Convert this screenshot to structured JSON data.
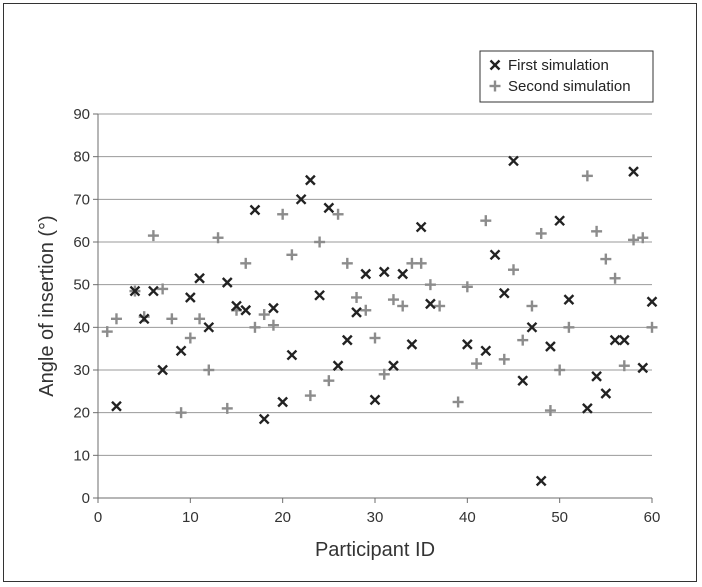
{
  "chart_data": {
    "type": "scatter",
    "title": "",
    "xlabel": "Participant ID",
    "ylabel": "Angle of insertion (°)",
    "xlim": [
      0,
      60
    ],
    "ylim": [
      0,
      90
    ],
    "x_ticks": [
      0,
      10,
      20,
      30,
      40,
      50,
      60
    ],
    "y_ticks": [
      0,
      10,
      20,
      30,
      40,
      50,
      60,
      70,
      80,
      90
    ],
    "grid": "horizontal",
    "legend_position": "top-right",
    "series": [
      {
        "name": "First simulation",
        "marker": "x",
        "color": "#222222",
        "points": [
          [
            2,
            21.5
          ],
          [
            4,
            48.5
          ],
          [
            5,
            42
          ],
          [
            6,
            48.5
          ],
          [
            7,
            30
          ],
          [
            9,
            34.5
          ],
          [
            10,
            47
          ],
          [
            11,
            51.5
          ],
          [
            12,
            40
          ],
          [
            14,
            50.5
          ],
          [
            15,
            45
          ],
          [
            16,
            44
          ],
          [
            17,
            67.5
          ],
          [
            18,
            18.5
          ],
          [
            19,
            44.5
          ],
          [
            20,
            22.5
          ],
          [
            21,
            33.5
          ],
          [
            22,
            70
          ],
          [
            23,
            74.5
          ],
          [
            24,
            47.5
          ],
          [
            25,
            68
          ],
          [
            26,
            31
          ],
          [
            27,
            37
          ],
          [
            28,
            43.5
          ],
          [
            29,
            52.5
          ],
          [
            30,
            23
          ],
          [
            31,
            53
          ],
          [
            32,
            31
          ],
          [
            33,
            52.5
          ],
          [
            34,
            36
          ],
          [
            35,
            63.5
          ],
          [
            36,
            45.5
          ],
          [
            40,
            36
          ],
          [
            42,
            34.5
          ],
          [
            43,
            57
          ],
          [
            44,
            48
          ],
          [
            45,
            79
          ],
          [
            46,
            27.5
          ],
          [
            47,
            40
          ],
          [
            48,
            4
          ],
          [
            49,
            35.5
          ],
          [
            50,
            65
          ],
          [
            51,
            46.5
          ],
          [
            53,
            21
          ],
          [
            54,
            28.5
          ],
          [
            55,
            24.5
          ],
          [
            56,
            37
          ],
          [
            57,
            37
          ],
          [
            58,
            76.5
          ],
          [
            59,
            30.5
          ],
          [
            60,
            46
          ]
        ]
      },
      {
        "name": "Second simulation",
        "marker": "+",
        "color": "#8c8c8c",
        "points": [
          [
            1,
            39
          ],
          [
            2,
            42
          ],
          [
            4,
            48.5
          ],
          [
            5,
            42.5
          ],
          [
            6,
            61.5
          ],
          [
            7,
            49
          ],
          [
            8,
            42
          ],
          [
            9,
            20
          ],
          [
            10,
            37.5
          ],
          [
            11,
            42
          ],
          [
            12,
            30
          ],
          [
            13,
            61
          ],
          [
            14,
            21
          ],
          [
            15,
            44
          ],
          [
            16,
            55
          ],
          [
            17,
            40
          ],
          [
            18,
            43
          ],
          [
            19,
            40.5
          ],
          [
            20,
            66.5
          ],
          [
            21,
            57
          ],
          [
            23,
            24
          ],
          [
            24,
            60
          ],
          [
            25,
            27.5
          ],
          [
            26,
            66.5
          ],
          [
            27,
            55
          ],
          [
            28,
            47
          ],
          [
            29,
            44
          ],
          [
            30,
            37.5
          ],
          [
            31,
            29
          ],
          [
            32,
            46.5
          ],
          [
            33,
            45
          ],
          [
            34,
            55
          ],
          [
            35,
            55
          ],
          [
            36,
            50
          ],
          [
            37,
            45
          ],
          [
            39,
            22.5
          ],
          [
            40,
            49.5
          ],
          [
            41,
            31.5
          ],
          [
            42,
            65
          ],
          [
            44,
            32.5
          ],
          [
            45,
            53.5
          ],
          [
            46,
            37
          ],
          [
            47,
            45
          ],
          [
            48,
            62
          ],
          [
            49,
            20.5
          ],
          [
            50,
            30
          ],
          [
            51,
            40
          ],
          [
            53,
            75.5
          ],
          [
            54,
            62.5
          ],
          [
            55,
            56
          ],
          [
            56,
            51.5
          ],
          [
            57,
            31
          ],
          [
            58,
            60.5
          ],
          [
            59,
            61
          ],
          [
            60,
            40
          ]
        ]
      }
    ]
  }
}
